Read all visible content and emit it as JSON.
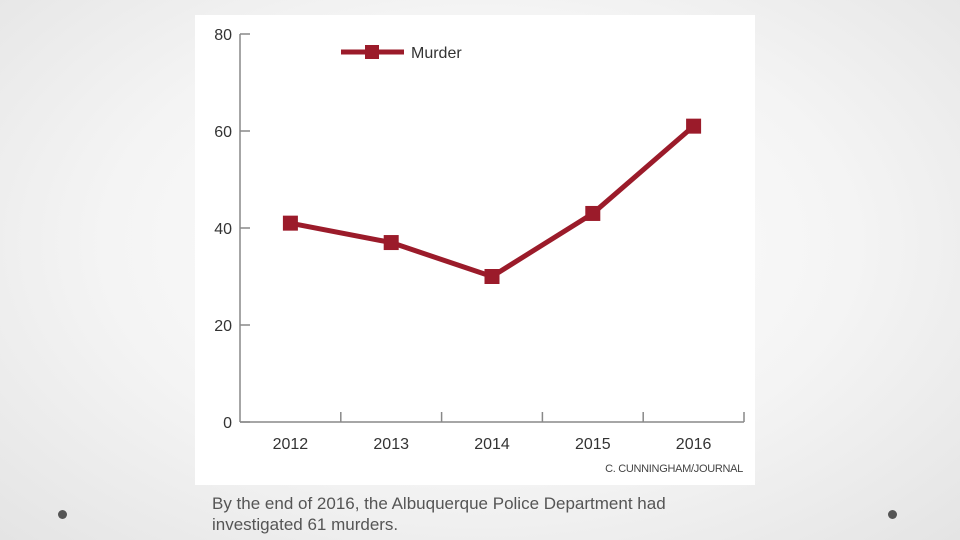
{
  "chart_data": {
    "type": "line",
    "categories": [
      "2012",
      "2013",
      "2014",
      "2015",
      "2016"
    ],
    "series": [
      {
        "name": "Murder",
        "values": [
          41,
          37,
          30,
          43,
          61
        ]
      }
    ],
    "title": "",
    "xlabel": "",
    "ylabel": "",
    "ylim": [
      0,
      80
    ],
    "yticks": [
      "0",
      "20",
      "40",
      "60",
      "80"
    ],
    "legend": "top-left",
    "credit": "C. CUNNINGHAM/JOURNAL",
    "colors": {
      "series": "#9b1b2a",
      "axis": "#888888"
    }
  },
  "caption": {
    "line1": "By the end of 2016, the Albuquerque Police Department had",
    "line2": "investigated 61 murders."
  }
}
